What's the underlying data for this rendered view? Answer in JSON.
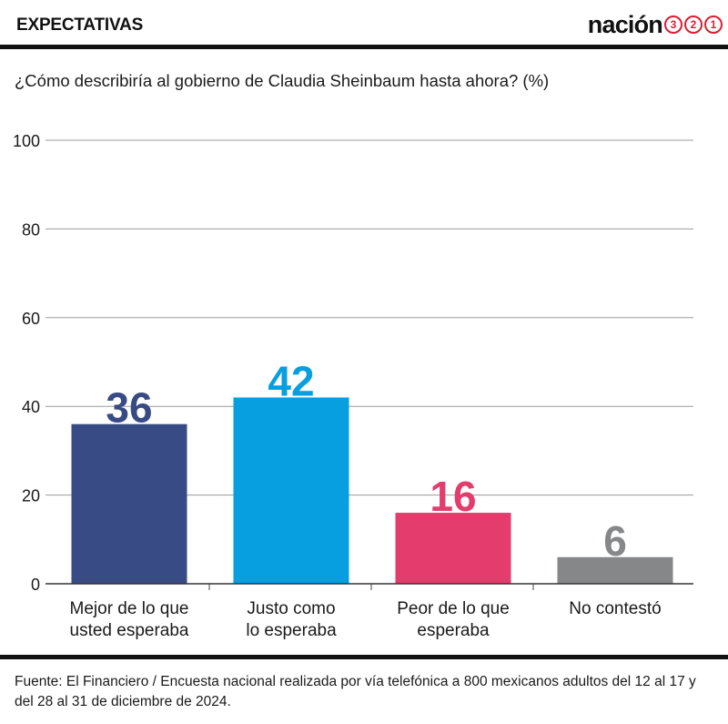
{
  "header": {
    "section_label": "EXPECTATIVAS",
    "logo_text": "nación",
    "logo_numbers": [
      "3",
      "2",
      "1"
    ]
  },
  "question": "¿Cómo describiría al gobierno de Claudia Sheinbaum hasta ahora?  (%)",
  "footnote": "Fuente: El Financiero / Encuesta nacional realizada por vía telefónica a 800 mexicanos adultos del 12 al 17 y del 28 al 31 de diciembre de 2024.",
  "colors": {
    "text": "#1a1a1a",
    "grid": "#9a9a9a",
    "logo_accent": "#d81f33"
  },
  "chart_data": {
    "type": "bar",
    "title": "¿Cómo describiría al gobierno de Claudia Sheinbaum hasta ahora?  (%)",
    "categories": [
      [
        "Mejor de lo que",
        "usted esperaba"
      ],
      [
        "Justo como",
        "lo esperaba"
      ],
      [
        "Peor de lo que",
        "esperaba"
      ],
      [
        "No contestó"
      ]
    ],
    "values": [
      36,
      42,
      16,
      6
    ],
    "bar_colors": [
      "#394b84",
      "#079fe0",
      "#e33c6d",
      "#858789"
    ],
    "ylim": [
      0,
      100
    ],
    "yticks": [
      0,
      20,
      40,
      60,
      80,
      100
    ],
    "grid": true,
    "legend": "none",
    "data_labels": true
  }
}
